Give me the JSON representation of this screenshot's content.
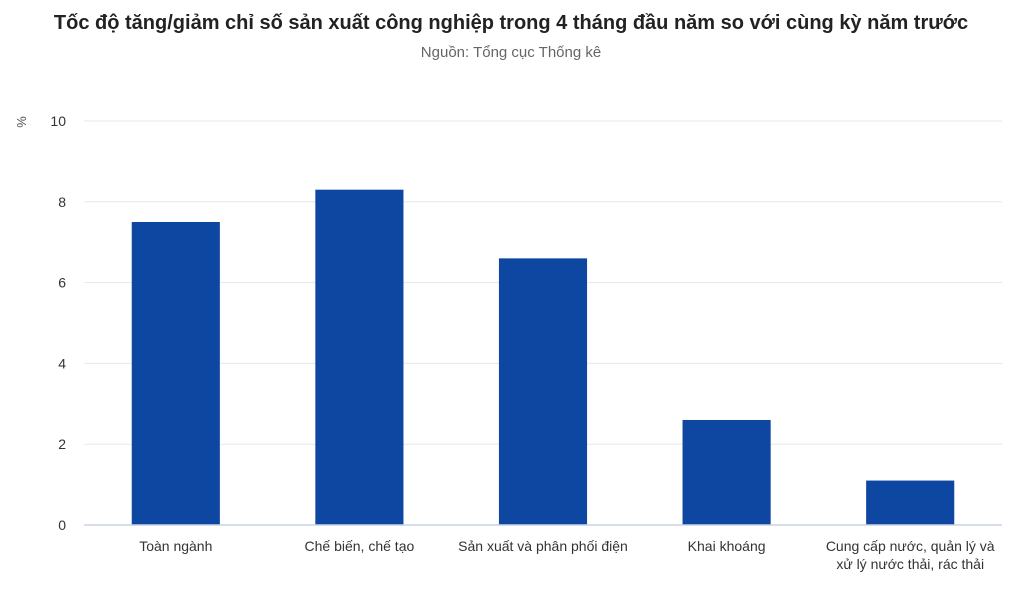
{
  "chart_data": {
    "type": "bar",
    "title": "Tốc độ tăng/giảm chỉ số sản xuất công nghiệp trong 4 tháng đầu năm so với cùng kỳ năm trước",
    "subtitle": "Nguồn: Tổng cục Thống kê",
    "ylabel": "%",
    "xlabel": "",
    "ylim": [
      0,
      10
    ],
    "yticks": [
      0,
      2,
      4,
      6,
      8,
      10
    ],
    "grid": true,
    "legend": "none",
    "bar_color": "#0d47a1",
    "categories": [
      [
        "Toàn ngành"
      ],
      [
        "Chế biến, chế tạo"
      ],
      [
        "Sản xuất và phân phối điện"
      ],
      [
        "Khai khoáng"
      ],
      [
        "Cung cấp nước, quản lý và",
        "xử lý nước thải, rác thải"
      ]
    ],
    "values": [
      7.5,
      8.3,
      6.6,
      2.6,
      1.1
    ]
  }
}
